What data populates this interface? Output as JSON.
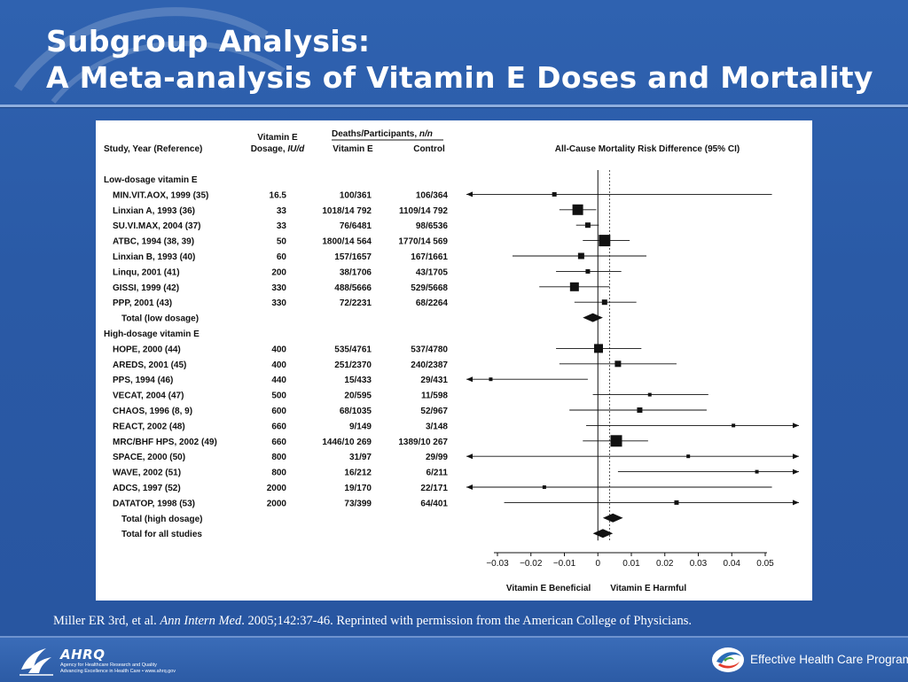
{
  "slide": {
    "title_line1": "Subgroup Analysis:",
    "title_line2": "A Meta-analysis of Vitamin E Doses and Mortality",
    "citation_prefix": "Miller ER 3rd, et al. ",
    "citation_journal": "Ann Intern Med",
    "citation_suffix": ". 2005;142:37-46. Reprinted with permission from the American College of Physicians.",
    "footer_ahrq": "AHRQ",
    "footer_ahrq_line1": "Agency for Healthcare Research and Quality",
    "footer_ahrq_line2": "Advancing Excellence in Health Care • www.ahrq.gov",
    "footer_program": "Effective Health Care Program"
  },
  "colors": {
    "background": "#2c5aa6",
    "title_text": "#ffffff",
    "panel": "#ffffff",
    "ink": "#111111"
  },
  "icons": [
    "hhs-eagle-logo",
    "ahrq-logo",
    "effective-health-care-swirl-logo"
  ],
  "chart_data": {
    "type": "forest",
    "headers": {
      "study": "Study, Year (Reference)",
      "dose_line1": "Vitamin E",
      "dose_line2_plain": "Dosage, ",
      "dose_line2_italic": "IU/d",
      "deaths_plain": "Deaths/Participants, ",
      "deaths_italic": "n/n",
      "vitamin_e": "Vitamin E",
      "control": "Control",
      "effect": "All-Cause Mortality Risk Difference (95% CI)"
    },
    "x_axis": {
      "range": [
        -0.03,
        0.05
      ],
      "ticks": [
        -0.03,
        -0.02,
        -0.01,
        0,
        0.01,
        0.02,
        0.03,
        0.04,
        0.05
      ],
      "tick_labels": [
        "−0.03",
        "−0.02",
        "−0.01",
        "0",
        "0.01",
        "0.02",
        "0.03",
        "0.04",
        "0.05"
      ],
      "left_label": "Vitamin E Beneficial",
      "right_label": "Vitamin E Harmful",
      "pooled_reference_line": 0.0035
    },
    "rows": [
      {
        "kind": "group",
        "label": "Low-dosage vitamin E"
      },
      {
        "kind": "study",
        "label": "MIN.VIT.AOX, 1999 (35)",
        "dose": "16.5",
        "ve": "100/361",
        "ctrl": "106/364",
        "rd": -0.013,
        "lo": -0.04,
        "hi": 0.052,
        "w": 5,
        "arrow_lo": true,
        "arrow_hi": false
      },
      {
        "kind": "study",
        "label": "Linxian A, 1993 (36)",
        "dose": "33",
        "ve": "1018/14 792",
        "ctrl": "1109/14 792",
        "rd": -0.006,
        "lo": -0.0115,
        "hi": -0.0005,
        "w": 12,
        "arrow_lo": false,
        "arrow_hi": false
      },
      {
        "kind": "study",
        "label": "SU.VI.MAX, 2004 (37)",
        "dose": "33",
        "ve": "76/6481",
        "ctrl": "98/6536",
        "rd": -0.003,
        "lo": -0.0065,
        "hi": 0.0003,
        "w": 6,
        "arrow_lo": false,
        "arrow_hi": false
      },
      {
        "kind": "study",
        "label": "ATBC, 1994 (38, 39)",
        "dose": "50",
        "ve": "1800/14 564",
        "ctrl": "1770/14 569",
        "rd": 0.002,
        "lo": -0.0045,
        "hi": 0.0095,
        "w": 13,
        "arrow_lo": false,
        "arrow_hi": false
      },
      {
        "kind": "study",
        "label": "Linxian B, 1993 (40)",
        "dose": "60",
        "ve": "157/1657",
        "ctrl": "167/1661",
        "rd": -0.005,
        "lo": -0.0255,
        "hi": 0.0145,
        "w": 7,
        "arrow_lo": false,
        "arrow_hi": false
      },
      {
        "kind": "study",
        "label": "Linqu, 2001 (41)",
        "dose": "200",
        "ve": "38/1706",
        "ctrl": "43/1705",
        "rd": -0.003,
        "lo": -0.0125,
        "hi": 0.007,
        "w": 5,
        "arrow_lo": false,
        "arrow_hi": false
      },
      {
        "kind": "study",
        "label": "GISSI, 1999 (42)",
        "dose": "330",
        "ve": "488/5666",
        "ctrl": "529/5668",
        "rd": -0.007,
        "lo": -0.0175,
        "hi": 0.0035,
        "w": 10,
        "arrow_lo": false,
        "arrow_hi": false
      },
      {
        "kind": "study",
        "label": "PPP, 2001 (43)",
        "dose": "330",
        "ve": "72/2231",
        "ctrl": "68/2264",
        "rd": 0.002,
        "lo": -0.007,
        "hi": 0.0115,
        "w": 6,
        "arrow_lo": false,
        "arrow_hi": false
      },
      {
        "kind": "total",
        "label": "Total (low dosage)",
        "rd": -0.0015,
        "lo": -0.0045,
        "hi": 0.0015
      },
      {
        "kind": "group",
        "label": "High-dosage vitamin E"
      },
      {
        "kind": "study",
        "label": "HOPE, 2000 (44)",
        "dose": "400",
        "ve": "535/4761",
        "ctrl": "537/4780",
        "rd": 0.0002,
        "lo": -0.0125,
        "hi": 0.013,
        "w": 10,
        "arrow_lo": false,
        "arrow_hi": false
      },
      {
        "kind": "study",
        "label": "AREDS, 2001 (45)",
        "dose": "400",
        "ve": "251/2370",
        "ctrl": "240/2387",
        "rd": 0.006,
        "lo": -0.0115,
        "hi": 0.0235,
        "w": 7,
        "arrow_lo": false,
        "arrow_hi": false
      },
      {
        "kind": "study",
        "label": "PPS, 1994 (46)",
        "dose": "440",
        "ve": "15/433",
        "ctrl": "29/431",
        "rd": -0.032,
        "lo": -0.038,
        "hi": -0.003,
        "w": 4,
        "arrow_lo": true,
        "arrow_hi": false
      },
      {
        "kind": "study",
        "label": "VECAT, 2004 (47)",
        "dose": "500",
        "ve": "20/595",
        "ctrl": "11/598",
        "rd": 0.0155,
        "lo": -0.0015,
        "hi": 0.033,
        "w": 4,
        "arrow_lo": false,
        "arrow_hi": false
      },
      {
        "kind": "study",
        "label": "CHAOS, 1996 (8, 9)",
        "dose": "600",
        "ve": "68/1035",
        "ctrl": "52/967",
        "rd": 0.0125,
        "lo": -0.0085,
        "hi": 0.0325,
        "w": 6,
        "arrow_lo": false,
        "arrow_hi": false
      },
      {
        "kind": "study",
        "label": "REACT, 2002 (48)",
        "dose": "660",
        "ve": "9/149",
        "ctrl": "3/148",
        "rd": 0.0405,
        "lo": -0.0035,
        "hi": 0.0595,
        "w": 4,
        "arrow_lo": false,
        "arrow_hi": true
      },
      {
        "kind": "study",
        "label": "MRC/BHF HPS, 2002 (49)",
        "dose": "660",
        "ve": "1446/10 269",
        "ctrl": "1389/10 267",
        "rd": 0.0055,
        "lo": -0.0045,
        "hi": 0.015,
        "w": 13,
        "arrow_lo": false,
        "arrow_hi": false
      },
      {
        "kind": "study",
        "label": "SPACE, 2000 (50)",
        "dose": "800",
        "ve": "31/97",
        "ctrl": "29/99",
        "rd": 0.027,
        "lo": -0.04,
        "hi": 0.0595,
        "w": 4,
        "arrow_lo": true,
        "arrow_hi": true
      },
      {
        "kind": "study",
        "label": "WAVE, 2002 (51)",
        "dose": "800",
        "ve": "16/212",
        "ctrl": "6/211",
        "rd": 0.0475,
        "lo": 0.006,
        "hi": 0.0595,
        "w": 4,
        "arrow_lo": false,
        "arrow_hi": true
      },
      {
        "kind": "study",
        "label": "ADCS, 1997 (52)",
        "dose": "2000",
        "ve": "19/170",
        "ctrl": "22/171",
        "rd": -0.016,
        "lo": -0.04,
        "hi": 0.052,
        "w": 4,
        "arrow_lo": true,
        "arrow_hi": false
      },
      {
        "kind": "study",
        "label": "DATATOP, 1998 (53)",
        "dose": "2000",
        "ve": "73/399",
        "ctrl": "64/401",
        "rd": 0.0235,
        "lo": -0.028,
        "hi": 0.0595,
        "w": 5,
        "arrow_lo": false,
        "arrow_hi": true
      },
      {
        "kind": "total",
        "label": "Total (high dosage)",
        "rd": 0.0045,
        "lo": 0.0015,
        "hi": 0.0075
      },
      {
        "kind": "total",
        "label": "Total for all studies",
        "rd": 0.0015,
        "lo": -0.0015,
        "hi": 0.0045
      }
    ]
  }
}
